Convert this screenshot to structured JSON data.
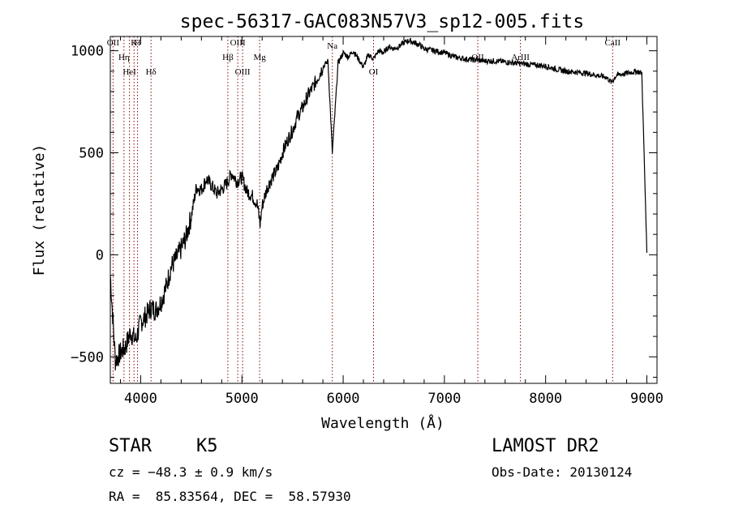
{
  "chart_data": {
    "type": "line",
    "title": "spec-56317-GAC083N57V3_sp12-005.fits",
    "xlabel": "Wavelength (Å)",
    "ylabel": "Flux (relative)",
    "xlim": [
      3700,
      9100
    ],
    "ylim": [
      -630,
      1070
    ],
    "x_ticks": [
      4000,
      5000,
      6000,
      7000,
      8000,
      9000
    ],
    "y_ticks": [
      -500,
      0,
      500,
      1000
    ],
    "grid": false,
    "line_color": "#000000",
    "marker_color": "#8b0000",
    "series": [
      {
        "x": [
          3700,
          3750,
          3800,
          3850,
          3900,
          3950,
          4000,
          4050,
          4100,
          4150,
          4200,
          4250,
          4300,
          4350,
          4400,
          4450,
          4500,
          4550,
          4600,
          4650,
          4700,
          4750,
          4800,
          4850,
          4900,
          4950,
          5000,
          5050,
          5100,
          5150,
          5180,
          5200,
          5250,
          5300,
          5350,
          5400,
          5450,
          5500,
          5550,
          5600,
          5650,
          5700,
          5750,
          5800,
          5850,
          5893,
          5950,
          6000,
          6050,
          6100,
          6150,
          6200,
          6250,
          6300,
          6350,
          6400,
          6450,
          6500,
          6550,
          6600,
          6650,
          6700,
          6750,
          6800,
          6900,
          7000,
          7100,
          7200,
          7300,
          7400,
          7500,
          7600,
          7700,
          7800,
          7900,
          8000,
          8100,
          8200,
          8300,
          8400,
          8500,
          8600,
          8650,
          8700,
          8800,
          8900,
          8950,
          9000
        ],
        "y": [
          -100,
          -520,
          -480,
          -450,
          -380,
          -420,
          -330,
          -300,
          -260,
          -270,
          -230,
          -160,
          -60,
          -20,
          30,
          90,
          190,
          330,
          320,
          370,
          340,
          300,
          320,
          350,
          400,
          360,
          380,
          310,
          290,
          250,
          150,
          240,
          330,
          380,
          420,
          500,
          560,
          610,
          680,
          720,
          780,
          820,
          870,
          920,
          950,
          500,
          940,
          990,
          970,
          1000,
          960,
          920,
          980,
          960,
          1000,
          990,
          1020,
          1010,
          1020,
          1040,
          1050,
          1040,
          1030,
          1010,
          1000,
          990,
          970,
          960,
          955,
          950,
          950,
          945,
          940,
          935,
          930,
          925,
          910,
          900,
          895,
          890,
          880,
          870,
          845,
          880,
          890,
          900,
          890,
          10
        ]
      }
    ],
    "spectral_lines": [
      {
        "label": "OII",
        "x": 3727
      },
      {
        "label": "Hη",
        "x": 3835
      },
      {
        "label": "HeI",
        "x": 3889
      },
      {
        "label": "K",
        "x": 3934
      },
      {
        "label": "H",
        "x": 3969
      },
      {
        "label": "Hδ",
        "x": 4102
      },
      {
        "label": "Hβ",
        "x": 4861
      },
      {
        "label": "OIII",
        "x": 4959
      },
      {
        "label": "OIII",
        "x": 5007
      },
      {
        "label": "Mg",
        "x": 5175
      },
      {
        "label": "Na",
        "x": 5893
      },
      {
        "label": "OI",
        "x": 6300
      },
      {
        "label": "OII",
        "x": 7330
      },
      {
        "label": "ArIII",
        "x": 7751
      },
      {
        "label": "CaII",
        "x": 8662
      }
    ]
  },
  "info": {
    "object_type": "STAR",
    "subclass": "K5",
    "survey": "LAMOST DR2",
    "redshift": "cz = −48.3 ± 0.9 km/s",
    "obs_date": "Obs-Date: 20130124",
    "coords": "RA =  85.83564, DEC =  58.57930"
  }
}
